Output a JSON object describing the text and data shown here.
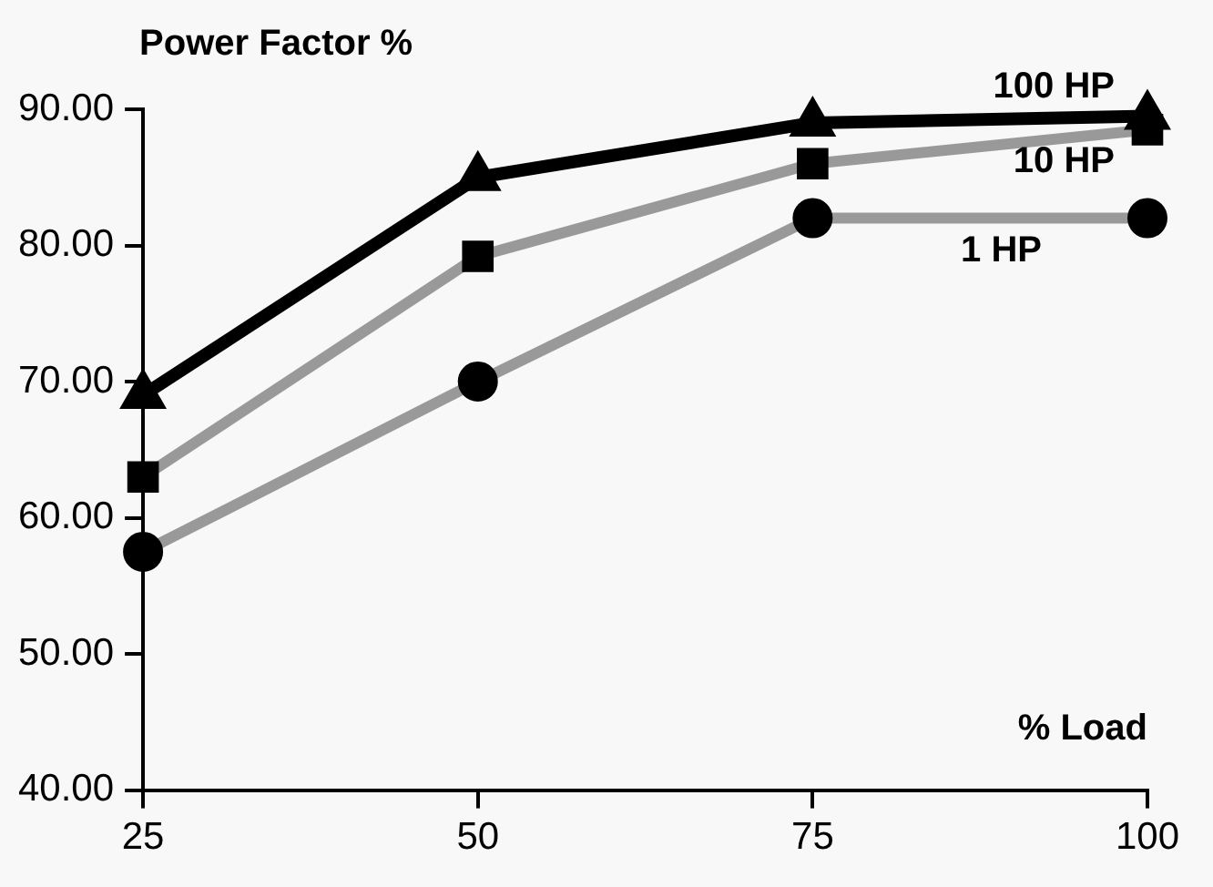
{
  "chart_data": {
    "type": "line",
    "title": "Power Factor %",
    "xlabel": "% Load",
    "x": [
      25,
      50,
      75,
      100
    ],
    "series": [
      {
        "name": "100 HP",
        "color": "#000000",
        "marker": "triangle",
        "values": [
          69,
          85,
          89,
          89.5
        ]
      },
      {
        "name": "10 HP",
        "color": "#999999",
        "marker": "square",
        "values": [
          63,
          79.2,
          86,
          88.5
        ]
      },
      {
        "name": "1 HP",
        "color": "#999999",
        "marker": "circle",
        "values": [
          57.5,
          70,
          82,
          82
        ]
      }
    ],
    "xlim": [
      25,
      100
    ],
    "xticks": [
      25,
      50,
      75,
      100
    ],
    "ylim": [
      40,
      90
    ],
    "yticks": [
      {
        "value": 40,
        "label": "40.00"
      },
      {
        "value": 50,
        "label": "50.00"
      },
      {
        "value": 60,
        "label": "60.00"
      },
      {
        "value": 70,
        "label": "70.00"
      },
      {
        "value": 80,
        "label": "80.00"
      },
      {
        "value": 90,
        "label": "90.00"
      }
    ],
    "grid": false,
    "legend": false,
    "line_style": "solid"
  }
}
